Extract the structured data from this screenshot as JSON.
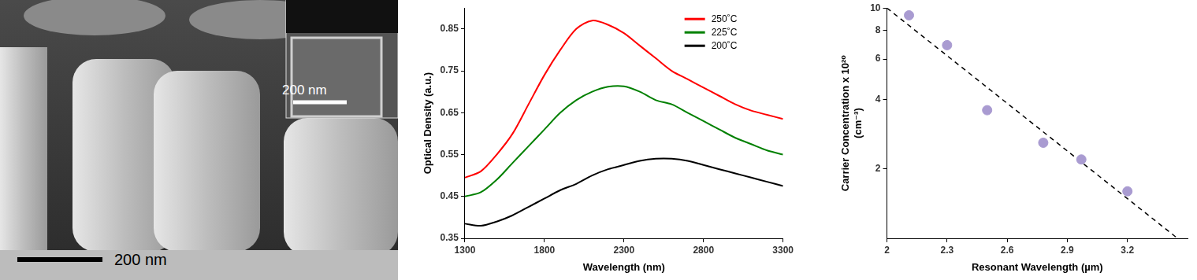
{
  "image": {
    "scale_bar": "200 nm",
    "inset_scale_bar": "200 nm"
  },
  "chart_data": [
    {
      "type": "line",
      "xlabel": "Wavelength (nm)",
      "ylabel": "Optical Density (a.u.)",
      "x": [
        1300,
        1400,
        1500,
        1600,
        1700,
        1800,
        1900,
        2000,
        2100,
        2200,
        2300,
        2400,
        2500,
        2600,
        2700,
        2800,
        2900,
        3000,
        3100,
        3200,
        3300
      ],
      "xlim": [
        1300,
        3300
      ],
      "xticks": [
        1300,
        1800,
        2300,
        2800,
        3300
      ],
      "ylim": [
        0.35,
        0.9
      ],
      "yticks": [
        0.35,
        0.45,
        0.55,
        0.65,
        0.75,
        0.85
      ],
      "grid": false,
      "legend": "upper right",
      "series": [
        {
          "name": "250˚C",
          "color": "#ff0000",
          "values": [
            0.495,
            0.51,
            0.55,
            0.6,
            0.67,
            0.74,
            0.8,
            0.85,
            0.87,
            0.86,
            0.84,
            0.81,
            0.78,
            0.75,
            0.73,
            0.71,
            0.69,
            0.67,
            0.655,
            0.645,
            0.635
          ]
        },
        {
          "name": "225˚C",
          "color": "#008000",
          "values": [
            0.45,
            0.46,
            0.49,
            0.53,
            0.57,
            0.61,
            0.65,
            0.68,
            0.7,
            0.712,
            0.713,
            0.7,
            0.68,
            0.67,
            0.65,
            0.63,
            0.61,
            0.59,
            0.575,
            0.56,
            0.55
          ]
        },
        {
          "name": "200˚C",
          "color": "#000000",
          "values": [
            0.385,
            0.38,
            0.39,
            0.405,
            0.425,
            0.445,
            0.465,
            0.48,
            0.5,
            0.515,
            0.525,
            0.535,
            0.54,
            0.54,
            0.535,
            0.525,
            0.515,
            0.505,
            0.495,
            0.485,
            0.475
          ]
        }
      ]
    },
    {
      "type": "scatter",
      "xlabel": "Resonant Wavelength (µm)",
      "ylabel": [
        "Carrier Concentration x 10²⁰",
        "(cm⁻³)"
      ],
      "log": "y",
      "xlim": [
        2,
        3.5
      ],
      "xticks": [
        2,
        2.3,
        2.6,
        2.9,
        3.2
      ],
      "ylim": [
        1,
        10
      ],
      "yticks": [
        2,
        4,
        6,
        8,
        10
      ],
      "grid": false,
      "series": [
        {
          "type": "scatter",
          "color": "#a99bd1",
          "marker": "circle",
          "x": [
            2.11,
            2.3,
            2.5,
            2.78,
            2.97,
            3.2
          ],
          "values": [
            9.3,
            6.9,
            3.6,
            2.6,
            2.2,
            1.6
          ]
        },
        {
          "type": "line",
          "color": "#000000",
          "line_style": "dashed",
          "x": [
            2,
            3.45
          ],
          "values": [
            10,
            1
          ]
        }
      ]
    }
  ]
}
